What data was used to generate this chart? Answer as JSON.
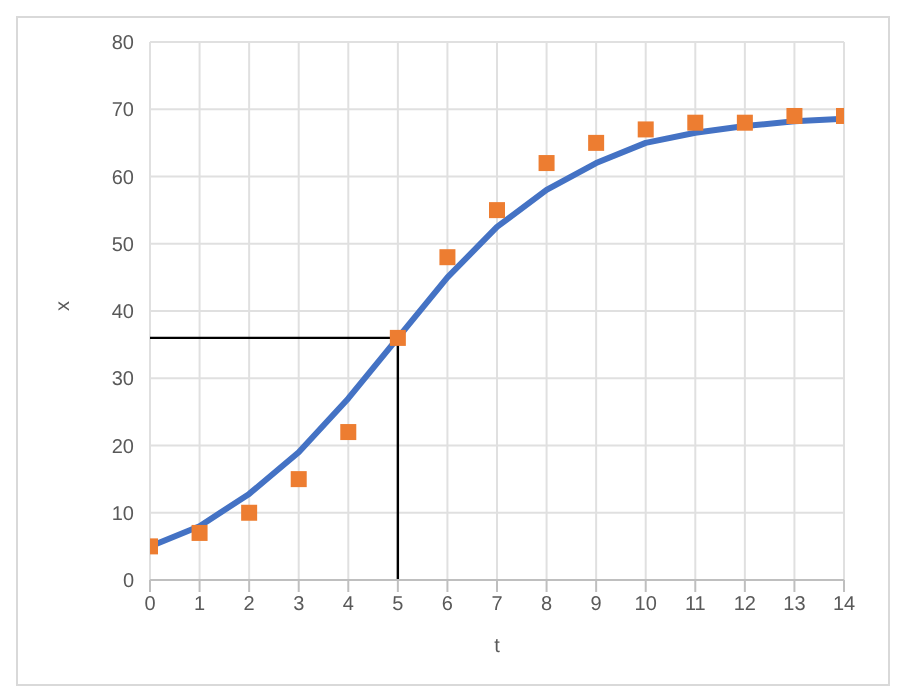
{
  "chart_data": {
    "type": "line",
    "xlabel": "t",
    "ylabel": "x",
    "x": [
      0,
      1,
      2,
      3,
      4,
      5,
      6,
      7,
      8,
      9,
      10,
      11,
      12,
      13,
      14
    ],
    "series": [
      {
        "color": "#4472c4",
        "marker": "none",
        "values": [
          5,
          8,
          12.8,
          19,
          27,
          36,
          45,
          52.5,
          58,
          62,
          65,
          66.5,
          67.5,
          68.2,
          68.6
        ]
      },
      {
        "type": "scatter",
        "color": "#ed7d31",
        "marker": "square",
        "values": [
          5,
          7,
          10,
          15,
          22,
          36,
          48,
          55,
          62,
          65,
          67,
          68,
          68,
          69,
          69
        ]
      }
    ],
    "xlim": [
      0,
      14
    ],
    "xticks": [
      0,
      1,
      2,
      3,
      4,
      5,
      6,
      7,
      8,
      9,
      10,
      11,
      12,
      13,
      14
    ],
    "ylim": [
      0,
      80
    ],
    "yticks": [
      0,
      10,
      20,
      30,
      40,
      50,
      60,
      70,
      80
    ],
    "grid": true,
    "ref_lines": [
      {
        "axis": "x",
        "value": 5,
        "color": "#000000"
      },
      {
        "axis": "y",
        "value": 36,
        "color": "#000000"
      }
    ]
  }
}
